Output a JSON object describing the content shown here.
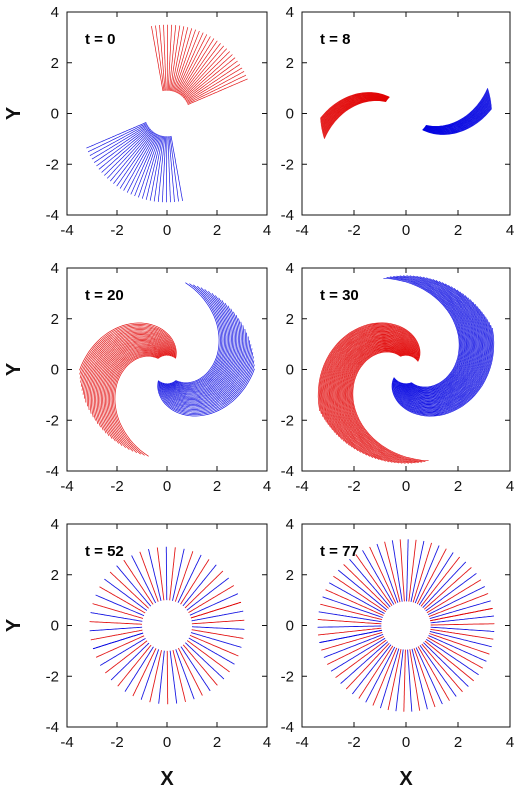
{
  "figure": {
    "x_axis_label": "X",
    "y_axis_label": "Y"
  },
  "colors": {
    "series_a": "#e00000",
    "series_b": "#0000e0",
    "axes": "#111111"
  },
  "chart_data": [
    {
      "type": "line",
      "annotation": "t = 0",
      "xlim": [
        -4,
        4
      ],
      "ylim": [
        -4,
        4
      ],
      "xticks": [
        -4,
        -2,
        0,
        2,
        4
      ],
      "yticks": [
        -4,
        -2,
        0,
        2,
        4
      ],
      "grid": false,
      "structure": {
        "r_inner": 0.9,
        "r_outer": 3.5,
        "phi_inner": 0.4,
        "phi_outer": 0.0,
        "phi_span": 1.35,
        "curves": 30
      }
    },
    {
      "type": "line",
      "annotation": "t = 8",
      "xlim": [
        -4,
        4
      ],
      "ylim": [
        -4,
        4
      ],
      "xticks": [
        -4,
        -2,
        0,
        2,
        4
      ],
      "yticks": [
        -4,
        -2,
        0,
        2,
        4
      ],
      "grid": false,
      "structure": {
        "r_inner": 0.9,
        "r_outer": 3.3,
        "phi_inner": 2.35,
        "phi_outer": 0.85,
        "phi_span": 0.25,
        "curves": 24
      }
    },
    {
      "type": "line",
      "annotation": "t = 20",
      "xlim": [
        -4,
        4
      ],
      "ylim": [
        -4,
        4
      ],
      "xticks": [
        -4,
        -2,
        0,
        2,
        4
      ],
      "yticks": [
        -4,
        -2,
        0,
        2,
        4
      ],
      "grid": false,
      "structure": {
        "r_inner": 0.55,
        "r_outer": 3.5,
        "phi_inner": 0.9,
        "phi_outer": 2.25,
        "phi_span": 1.35,
        "curves": 30
      }
    },
    {
      "type": "line",
      "annotation": "t = 30",
      "xlim": [
        -4,
        4
      ],
      "ylim": [
        -4,
        4
      ],
      "xticks": [
        -4,
        -2,
        0,
        2,
        4
      ],
      "yticks": [
        -4,
        -2,
        0,
        2,
        4
      ],
      "grid": false,
      "structure": {
        "r_inner": 0.55,
        "r_outer": 3.7,
        "phi_inner": 0.6,
        "phi_outer": 3.0,
        "phi_span": 1.35,
        "curves": 40
      }
    },
    {
      "type": "line",
      "annotation": "t = 52",
      "xlim": [
        -4,
        4
      ],
      "ylim": [
        -4,
        4
      ],
      "xticks": [
        -4,
        -2,
        0,
        2,
        4
      ],
      "yticks": [
        -4,
        -2,
        0,
        2,
        4
      ],
      "grid": false,
      "structure": {
        "r_inner": 1.0,
        "r_outer": 3.1,
        "phi_inner": 0.3,
        "phi_outer": 0.0,
        "phi_span": 2.6,
        "curves": 28,
        "full_disk": true
      }
    },
    {
      "type": "line",
      "annotation": "t = 77",
      "xlim": [
        -4,
        4
      ],
      "ylim": [
        -4,
        4
      ],
      "xticks": [
        -4,
        -2,
        0,
        2,
        4
      ],
      "yticks": [
        -4,
        -2,
        0,
        2,
        4
      ],
      "grid": false,
      "structure": {
        "r_inner": 0.95,
        "r_outer": 3.4,
        "phi_inner": 0.2,
        "phi_outer": 0.0,
        "phi_span": 3.0,
        "curves": 36,
        "full_disk": true
      }
    }
  ]
}
